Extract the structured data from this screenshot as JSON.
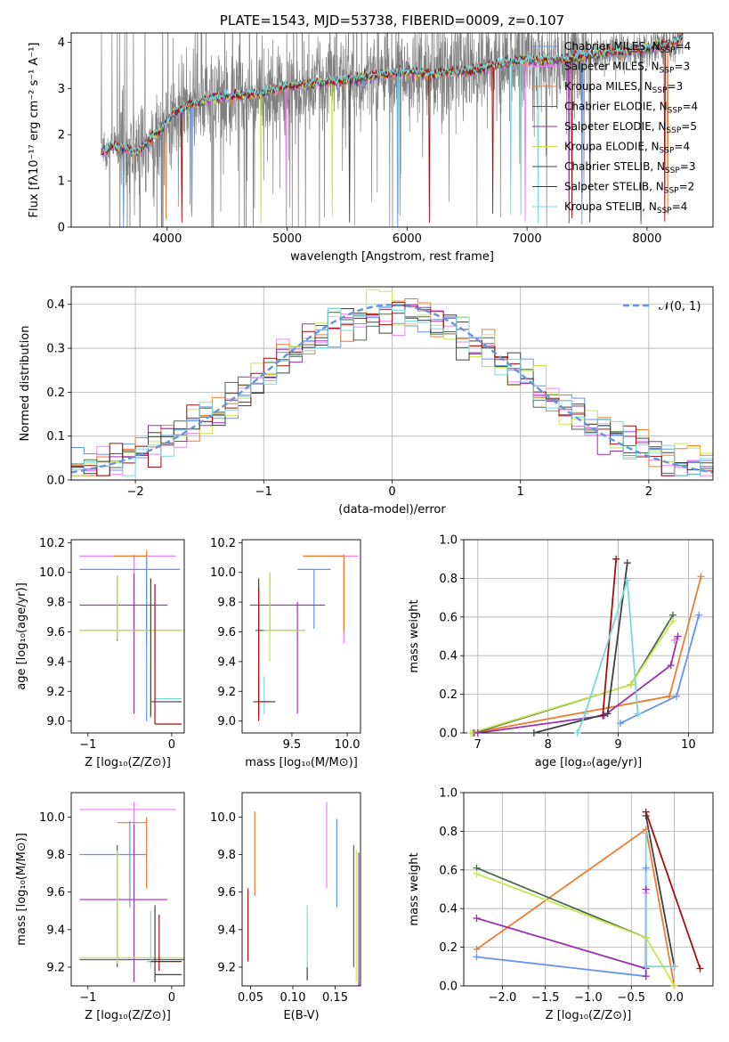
{
  "colors": {
    "chabrier_miles": "#6495ed",
    "salpeter_miles": "#ee82ee",
    "kroupa_miles": "#ed7d31",
    "chabrier_elodie": "#4a6a4a",
    "salpeter_elodie": "#9b30b0",
    "kroupa_elodie": "#c8e650",
    "chabrier_stelib": "#404040",
    "salpeter_stelib": "#a01010",
    "kroupa_stelib": "#78d8dc",
    "data_grey": "#808080",
    "normal_curve": "#6495dd",
    "grid": "#b0b0b0"
  },
  "chart_data": [
    {
      "id": "spectrum",
      "type": "line",
      "title": "PLATE=1543, MJD=53738, FIBERID=0009, z=0.107",
      "xlabel": "wavelength [Angstrom, rest frame]",
      "ylabel": "Flux [fλ10⁻¹⁷ erg cm⁻² s⁻¹ A⁻¹]",
      "xlim": [
        3200,
        8550
      ],
      "ylim": [
        0,
        4.2
      ],
      "xticks": [
        4000,
        5000,
        6000,
        7000,
        8000
      ],
      "yticks": [
        0,
        1,
        2,
        3,
        4
      ],
      "grid": false,
      "legend_position": "top-right",
      "legend": [
        {
          "label": "Chabrier MILES, N",
          "sub": "SSP",
          "tail": "=4",
          "color_key": "chabrier_miles"
        },
        {
          "label": "Salpeter MILES, N",
          "sub": "SSP",
          "tail": "=3",
          "color_key": "salpeter_miles"
        },
        {
          "label": "Kroupa MILES, N",
          "sub": "SSP",
          "tail": "=3",
          "color_key": "kroupa_miles"
        },
        {
          "label": "Chabrier ELODIE, N",
          "sub": "SSP",
          "tail": "=4",
          "color_key": "chabrier_elodie"
        },
        {
          "label": "Salpeter ELODIE, N",
          "sub": "SSP",
          "tail": "=5",
          "color_key": "salpeter_elodie"
        },
        {
          "label": "Kroupa ELODIE, N",
          "sub": "SSP",
          "tail": "=4",
          "color_key": "kroupa_elodie"
        },
        {
          "label": "Chabrier STELIB, N",
          "sub": "SSP",
          "tail": "=3",
          "color_key": "chabrier_stelib"
        },
        {
          "label": "Salpeter STELIB, N",
          "sub": "SSP",
          "tail": "=2",
          "color_key": "salpeter_stelib"
        },
        {
          "label": "Kroupa STELIB, N",
          "sub": "SSP",
          "tail": "=4",
          "color_key": "kroupa_stelib"
        }
      ],
      "continuum_model": {
        "x": [
          3450,
          3550,
          3650,
          3750,
          3850,
          3950,
          4050,
          4200,
          4400,
          4600,
          4800,
          5000,
          5200,
          5400,
          5600,
          5800,
          6000,
          6200,
          6400,
          6600,
          6800,
          7000,
          7200,
          7400,
          7600,
          7800,
          8000,
          8200,
          8300
        ],
        "y": [
          1.6,
          1.75,
          1.7,
          1.6,
          1.9,
          2.1,
          2.45,
          2.65,
          2.8,
          2.85,
          2.9,
          3.05,
          3.1,
          3.15,
          3.2,
          3.3,
          3.35,
          3.3,
          3.35,
          3.4,
          3.55,
          3.6,
          3.6,
          3.65,
          3.75,
          3.8,
          3.85,
          3.95,
          4.1
        ]
      }
    },
    {
      "id": "residuals",
      "type": "step",
      "xlabel": "(data-model)/error",
      "ylabel": "Normed distribution",
      "xlim": [
        -2.5,
        2.5
      ],
      "ylim": [
        0,
        0.44
      ],
      "xticks": [
        -2,
        -1,
        0,
        1,
        2
      ],
      "yticks": [
        0.0,
        0.1,
        0.2,
        0.3,
        0.4
      ],
      "grid": true,
      "legend_position": "top-right",
      "normal_label": "𝒩(0, 1)",
      "bin_width": 0.1
    },
    {
      "id": "age_vs_Z",
      "type": "errorbar",
      "xlabel": "Z [log₁₀(Z/Z⊙)]",
      "ylabel": "age  [log₁₀(age/yr)]",
      "xlim": [
        -1.2,
        0.15
      ],
      "ylim": [
        8.92,
        10.22
      ],
      "xticks": [
        -1,
        0
      ],
      "yticks": [
        9.0,
        9.2,
        9.4,
        9.6,
        9.8,
        10.0,
        10.2
      ],
      "points": [
        {
          "c": "salpeter_miles",
          "x": -0.45,
          "y": 10.11,
          "xlo": -1.1,
          "xhi": 0.05,
          "ylo": 9.6,
          "yhi": 10.12
        },
        {
          "c": "kroupa_miles",
          "x": -0.3,
          "y": 10.11,
          "xlo": -0.7,
          "xhi": -0.3,
          "ylo": 9.52,
          "yhi": 10.15
        },
        {
          "c": "chabrier_miles",
          "x": -0.3,
          "y": 10.02,
          "xlo": -1.1,
          "xhi": 0.1,
          "ylo": 9.0,
          "yhi": 10.1
        },
        {
          "c": "salpeter_elodie",
          "x": -0.45,
          "y": 9.78,
          "xlo": -1.1,
          "xhi": -0.05,
          "ylo": 9.05,
          "yhi": 9.99
        },
        {
          "c": "chabrier_elodie",
          "x": -0.65,
          "y": 9.61,
          "xlo": -1.1,
          "xhi": 0.1,
          "ylo": 9.54,
          "yhi": 9.98
        },
        {
          "c": "kroupa_elodie",
          "x": -0.65,
          "y": 9.61,
          "xlo": -1.1,
          "xhi": 0.15,
          "ylo": 9.55,
          "yhi": 9.98
        },
        {
          "c": "kroupa_stelib",
          "x": -0.25,
          "y": 9.15,
          "xlo": -0.2,
          "xhi": 0.12,
          "ylo": 9.02,
          "yhi": 9.4
        },
        {
          "c": "chabrier_stelib",
          "x": -0.25,
          "y": 9.13,
          "xlo": -0.25,
          "xhi": 0.12,
          "ylo": 9.03,
          "yhi": 9.96
        },
        {
          "c": "salpeter_stelib",
          "x": -0.2,
          "y": 8.98,
          "xlo": -0.2,
          "xhi": 0.12,
          "ylo": 8.98,
          "yhi": 9.92
        }
      ]
    },
    {
      "id": "age_vs_mass",
      "type": "errorbar",
      "xlabel": "mass [log₁₀(M/M⊙)]",
      "ylabel": "",
      "xlim": [
        9.05,
        10.12
      ],
      "ylim": [
        8.92,
        10.22
      ],
      "xticks": [
        9.5,
        10.0
      ],
      "yticks": [
        9.0,
        9.2,
        9.4,
        9.6,
        9.8,
        10.0,
        10.2
      ],
      "points": [
        {
          "c": "salpeter_miles",
          "x": 9.97,
          "y": 10.11,
          "xlo": 9.6,
          "xhi": 10.1,
          "ylo": 9.52,
          "yhi": 10.12
        },
        {
          "c": "kroupa_miles",
          "x": 9.97,
          "y": 10.11,
          "xlo": 9.6,
          "xhi": 9.97,
          "ylo": 9.6,
          "yhi": 10.12
        },
        {
          "c": "chabrier_miles",
          "x": 9.7,
          "y": 10.02,
          "xlo": 9.55,
          "xhi": 9.85,
          "ylo": 9.62,
          "yhi": 10.02
        },
        {
          "c": "salpeter_elodie",
          "x": 9.55,
          "y": 9.78,
          "xlo": 9.12,
          "xhi": 9.8,
          "ylo": 9.05,
          "yhi": 9.8
        },
        {
          "c": "chabrier_elodie",
          "x": 9.3,
          "y": 9.61,
          "xlo": 9.17,
          "xhi": 9.62,
          "ylo": 9.6,
          "yhi": 10.0
        },
        {
          "c": "kroupa_elodie",
          "x": 9.3,
          "y": 9.61,
          "xlo": 9.25,
          "xhi": 9.62,
          "ylo": 9.4,
          "yhi": 10.0
        },
        {
          "c": "kroupa_stelib",
          "x": 9.25,
          "y": 9.13,
          "xlo": 9.2,
          "xhi": 9.35,
          "ylo": 9.05,
          "yhi": 9.3
        },
        {
          "c": "chabrier_stelib",
          "x": 9.2,
          "y": 9.13,
          "xlo": 9.2,
          "xhi": 9.35,
          "ylo": 9.03,
          "yhi": 9.96
        },
        {
          "c": "salpeter_stelib",
          "x": 9.2,
          "y": 9.13,
          "xlo": 9.15,
          "xhi": 9.3,
          "ylo": 9.0,
          "yhi": 9.9
        }
      ]
    },
    {
      "id": "weight_vs_age",
      "type": "line",
      "xlabel": "age  [log₁₀(age/yr)]",
      "ylabel": "mass weight",
      "xlim": [
        6.8,
        10.35
      ],
      "ylim": [
        0,
        1.0
      ],
      "xticks": [
        7,
        8,
        9,
        10
      ],
      "yticks": [
        0.0,
        0.2,
        0.4,
        0.6,
        0.8,
        1.0
      ],
      "grid": true,
      "series": [
        {
          "c": "chabrier_miles",
          "x": [
            9.03,
            9.83,
            10.15
          ],
          "y": [
            0.05,
            0.19,
            0.61
          ]
        },
        {
          "c": "salpeter_miles",
          "x": [
            9.8,
            9.85
          ],
          "y": [
            0.48,
            0.5
          ]
        },
        {
          "c": "kroupa_miles",
          "x": [
            6.93,
            9.73,
            10.18
          ],
          "y": [
            0.0,
            0.19,
            0.81
          ]
        },
        {
          "c": "chabrier_elodie",
          "x": [
            6.95,
            9.18,
            9.78
          ],
          "y": [
            0.0,
            0.25,
            0.61
          ]
        },
        {
          "c": "salpeter_elodie",
          "x": [
            7.0,
            8.8,
            9.75,
            9.85
          ],
          "y": [
            0.0,
            0.09,
            0.35,
            0.5
          ]
        },
        {
          "c": "kroupa_elodie",
          "x": [
            6.9,
            9.18,
            9.78
          ],
          "y": [
            0.0,
            0.25,
            0.58
          ]
        },
        {
          "c": "chabrier_stelib",
          "x": [
            7.8,
            8.85,
            9.13
          ],
          "y": [
            0.0,
            0.1,
            0.88
          ]
        },
        {
          "c": "salpeter_stelib",
          "x": [
            8.78,
            8.97
          ],
          "y": [
            0.09,
            0.9
          ]
        },
        {
          "c": "kroupa_stelib",
          "x": [
            8.42,
            8.53,
            9.13,
            9.28
          ],
          "y": [
            0.0,
            0.1,
            0.79,
            0.1
          ]
        }
      ]
    },
    {
      "id": "mass_vs_Z",
      "type": "errorbar",
      "xlabel": "Z [log₁₀(Z/Z⊙)]",
      "ylabel": "mass [log₁₀(M/M⊙)]",
      "xlim": [
        -1.2,
        0.15
      ],
      "ylim": [
        9.1,
        10.13
      ],
      "xticks": [
        -1,
        0
      ],
      "yticks": [
        9.2,
        9.4,
        9.6,
        9.8,
        10.0
      ],
      "points": [
        {
          "c": "salpeter_miles",
          "x": -0.45,
          "y": 10.04,
          "xlo": -1.1,
          "xhi": 0.05,
          "ylo": 9.65,
          "yhi": 10.08
        },
        {
          "c": "kroupa_miles",
          "x": -0.3,
          "y": 9.97,
          "xlo": -0.65,
          "xhi": -0.3,
          "ylo": 9.62,
          "yhi": 10.0
        },
        {
          "c": "chabrier_miles",
          "x": -0.5,
          "y": 9.8,
          "xlo": -1.1,
          "xhi": -0.3,
          "ylo": 9.52,
          "yhi": 9.98
        },
        {
          "c": "salpeter_elodie",
          "x": -0.45,
          "y": 9.56,
          "xlo": -1.1,
          "xhi": -0.05,
          "ylo": 9.12,
          "yhi": 9.96
        },
        {
          "c": "chabrier_elodie",
          "x": -0.65,
          "y": 9.24,
          "xlo": -1.1,
          "xhi": 0.15,
          "ylo": 9.2,
          "yhi": 9.85
        },
        {
          "c": "kroupa_elodie",
          "x": -0.65,
          "y": 9.25,
          "xlo": -1.1,
          "xhi": 0.15,
          "ylo": 9.22,
          "yhi": 9.82
        },
        {
          "c": "kroupa_stelib",
          "x": -0.25,
          "y": 9.23,
          "xlo": -0.3,
          "xhi": 0.12,
          "ylo": 9.2,
          "yhi": 9.5
        },
        {
          "c": "chabrier_stelib",
          "x": -0.2,
          "y": 9.16,
          "xlo": -0.2,
          "xhi": 0.12,
          "ylo": 9.12,
          "yhi": 9.53
        },
        {
          "c": "salpeter_stelib",
          "x": -0.15,
          "y": 9.23,
          "xlo": -0.25,
          "xhi": 0.12,
          "ylo": 9.18,
          "yhi": 9.48
        }
      ]
    },
    {
      "id": "mass_vs_ebv",
      "type": "errorbar",
      "xlabel": "E(B-V)",
      "ylabel": "",
      "xlim": [
        0.04,
        0.18
      ],
      "ylim": [
        9.1,
        10.13
      ],
      "xticks": [
        0.05,
        0.1,
        0.15
      ],
      "yticks": [
        9.2,
        9.4,
        9.6,
        9.8,
        10.0
      ],
      "points": [
        {
          "c": "salpeter_stelib",
          "x": 0.047,
          "y": 9.4,
          "xlo": 0.047,
          "xhi": 0.047,
          "ylo": 9.23,
          "yhi": 9.62
        },
        {
          "c": "kroupa_miles",
          "x": 0.055,
          "y": 9.8,
          "xlo": 0.055,
          "xhi": 0.055,
          "ylo": 9.58,
          "yhi": 10.03
        },
        {
          "c": "kroupa_stelib",
          "x": 0.117,
          "y": 9.35,
          "xlo": 0.117,
          "xhi": 0.117,
          "ylo": 9.17,
          "yhi": 9.53
        },
        {
          "c": "chabrier_stelib",
          "x": 0.117,
          "y": 9.17,
          "xlo": 0.117,
          "xhi": 0.117,
          "ylo": 9.13,
          "yhi": 9.2
        },
        {
          "c": "salpeter_miles",
          "x": 0.14,
          "y": 9.85,
          "xlo": 0.14,
          "xhi": 0.14,
          "ylo": 9.62,
          "yhi": 10.08
        },
        {
          "c": "chabrier_miles",
          "x": 0.152,
          "y": 9.75,
          "xlo": 0.152,
          "xhi": 0.152,
          "ylo": 9.52,
          "yhi": 9.99
        },
        {
          "c": "chabrier_elodie",
          "x": 0.172,
          "y": 9.5,
          "xlo": 0.172,
          "xhi": 0.172,
          "ylo": 9.2,
          "yhi": 9.85
        },
        {
          "c": "kroupa_elodie",
          "x": 0.175,
          "y": 9.5,
          "xlo": 0.175,
          "xhi": 0.175,
          "ylo": 9.12,
          "yhi": 9.83
        },
        {
          "c": "salpeter_elodie",
          "x": 0.178,
          "y": 9.35,
          "xlo": 0.178,
          "xhi": 0.178,
          "ylo": 9.08,
          "yhi": 9.81
        }
      ]
    },
    {
      "id": "weight_vs_Z",
      "type": "line",
      "xlabel": "Z [log₁₀(Z/Z⊙)]",
      "ylabel": "mass weight",
      "xlim": [
        -2.45,
        0.45
      ],
      "ylim": [
        0,
        1.0
      ],
      "xticks": [
        -2.0,
        -1.5,
        -1.0,
        -0.5,
        0.0
      ],
      "yticks": [
        0.0,
        0.2,
        0.4,
        0.6,
        0.8,
        1.0
      ],
      "grid": true,
      "series": [
        {
          "c": "chabrier_miles",
          "x": [
            -2.3,
            -0.33,
            -0.33
          ],
          "y": [
            0.15,
            0.05,
            0.61
          ]
        },
        {
          "c": "salpeter_miles",
          "x": [
            -0.33,
            -0.33
          ],
          "y": [
            0.48,
            0.5
          ]
        },
        {
          "c": "kroupa_miles",
          "x": [
            -2.3,
            -0.33,
            0.0
          ],
          "y": [
            0.19,
            0.81,
            0.0
          ]
        },
        {
          "c": "chabrier_elodie",
          "x": [
            -2.3,
            -0.33,
            -0.33
          ],
          "y": [
            0.61,
            0.25,
            0.1
          ]
        },
        {
          "c": "salpeter_elodie",
          "x": [
            -2.3,
            -0.33,
            -0.33,
            -0.33
          ],
          "y": [
            0.35,
            0.09,
            0.5,
            0.05
          ]
        },
        {
          "c": "kroupa_elodie",
          "x": [
            -2.3,
            -0.33,
            0.0
          ],
          "y": [
            0.58,
            0.25,
            0.0
          ]
        },
        {
          "c": "chabrier_stelib",
          "x": [
            -0.33,
            0.0,
            0.0
          ],
          "y": [
            0.88,
            0.1,
            0.1
          ]
        },
        {
          "c": "salpeter_stelib",
          "x": [
            -0.33,
            0.3
          ],
          "y": [
            0.9,
            0.09
          ]
        },
        {
          "c": "kroupa_stelib",
          "x": [
            -0.33,
            -0.33,
            0.0
          ],
          "y": [
            0.79,
            0.1,
            0.1
          ]
        }
      ]
    }
  ]
}
